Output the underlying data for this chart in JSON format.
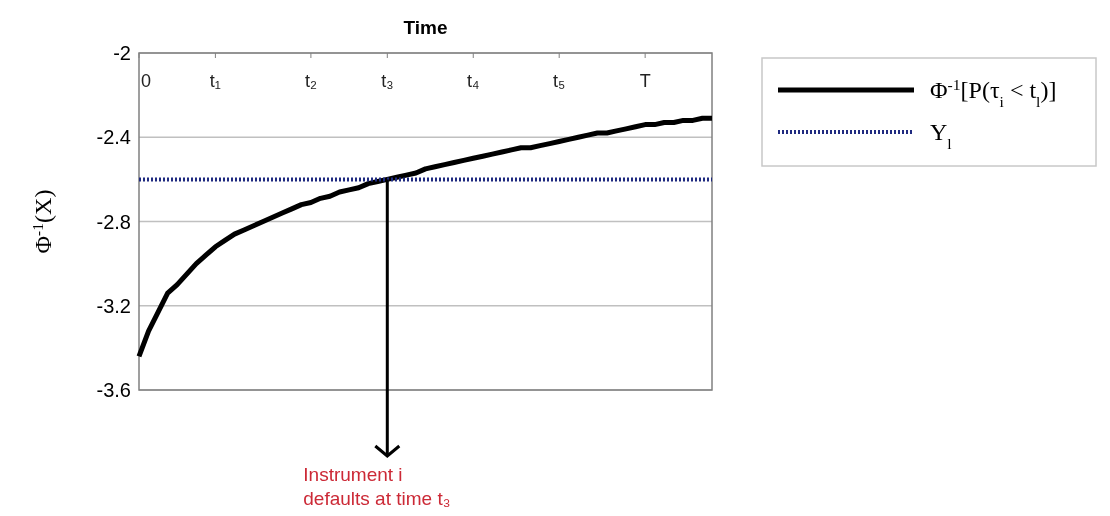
{
  "chart_data": {
    "type": "line",
    "xlabel": "Time",
    "ylabel": "Φ$^{-1}$(X)",
    "categories": [
      "0",
      null,
      null,
      null,
      null,
      null,
      null,
      null,
      "t₁",
      null,
      null,
      null,
      null,
      null,
      null,
      null,
      null,
      null,
      "t₂",
      null,
      null,
      null,
      null,
      null,
      null,
      null,
      "t₃",
      null,
      null,
      null,
      null,
      null,
      null,
      null,
      null,
      "t₄",
      null,
      null,
      null,
      null,
      null,
      null,
      null,
      null,
      "t₅",
      null,
      null,
      null,
      null,
      null,
      null,
      null,
      null,
      "T",
      null,
      null,
      null,
      null,
      null,
      null,
      null
    ],
    "series": [
      {
        "name": "Φ$^{-1}$[P(τ$_{i}$ < t$_{l}$)]",
        "color": "#000000",
        "line_style": "solid",
        "values": [
          -3.44,
          -3.32,
          -3.23,
          -3.14,
          -3.1,
          -3.05,
          -3.0,
          -2.96,
          -2.92,
          -2.89,
          -2.86,
          -2.84,
          -2.82,
          -2.8,
          -2.78,
          -2.76,
          -2.74,
          -2.72,
          -2.71,
          -2.69,
          -2.68,
          -2.66,
          -2.65,
          -2.64,
          -2.62,
          -2.61,
          -2.6,
          -2.59,
          -2.58,
          -2.57,
          -2.55,
          -2.54,
          -2.53,
          -2.52,
          -2.51,
          -2.5,
          -2.49,
          -2.48,
          -2.47,
          -2.46,
          -2.45,
          -2.45,
          -2.44,
          -2.43,
          -2.42,
          -2.41,
          -2.4,
          -2.39,
          -2.38,
          -2.38,
          -2.37,
          -2.36,
          -2.35,
          -2.34,
          -2.34,
          -2.33,
          -2.33,
          -2.32,
          -2.32,
          -2.31,
          -2.31
        ]
      },
      {
        "name": "Y$_{l}$",
        "color": "#1f2a80",
        "line_style": "dotted",
        "values": [
          -2.6,
          -2.6,
          -2.6,
          -2.6,
          -2.6,
          -2.6,
          -2.6,
          -2.6,
          -2.6,
          -2.6,
          -2.6,
          -2.6,
          -2.6,
          -2.6,
          -2.6,
          -2.6,
          -2.6,
          -2.6,
          -2.6,
          -2.6,
          -2.6,
          -2.6,
          -2.6,
          -2.6,
          -2.6,
          -2.6,
          -2.6,
          -2.6,
          -2.6,
          -2.6,
          -2.6,
          -2.6,
          -2.6,
          -2.6,
          -2.6,
          -2.6,
          -2.6,
          -2.6,
          -2.6,
          -2.6,
          -2.6,
          -2.6,
          -2.6,
          -2.6,
          -2.6,
          -2.6,
          -2.6,
          -2.6,
          -2.6,
          -2.6,
          -2.6,
          -2.6,
          -2.6,
          -2.6,
          -2.6,
          -2.6,
          -2.6,
          -2.6,
          -2.6,
          -2.6,
          -2.6
        ]
      }
    ],
    "ylim": [
      -3.6,
      -2
    ],
    "yticks": [
      -2,
      -2.4,
      -2.8,
      -3.2,
      -3.6
    ],
    "grid": "y",
    "legend": "right",
    "annotations": [
      {
        "text": "Instrument i defaults at time t₃",
        "x": "t₃",
        "y": -2.6
      }
    ]
  }
}
